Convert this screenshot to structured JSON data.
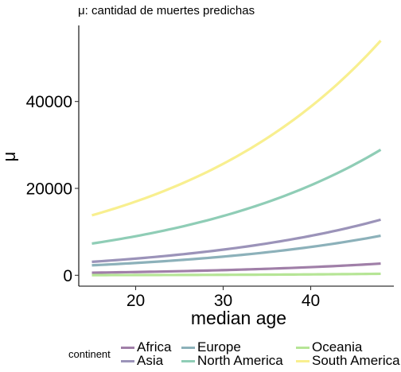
{
  "chart_data": {
    "type": "line",
    "title": "",
    "subtitle": "μ: cantidad de muertes predichas",
    "xlabel": "median age",
    "ylabel": "μ",
    "xlim": [
      13.5,
      49.5
    ],
    "ylim": [
      -2500,
      57500
    ],
    "x_ticks": [
      20,
      30,
      40
    ],
    "y_ticks": [
      0,
      20000,
      40000
    ],
    "x_tick_labels": [
      "20",
      "30",
      "40"
    ],
    "y_tick_labels": [
      "0",
      "20000",
      "40000"
    ],
    "grid": false,
    "legend_position": "bottom",
    "legend_title": "continent",
    "x": [
      15,
      48
    ],
    "series": [
      {
        "name": "Africa",
        "color": "#a07fa8",
        "values": [
          600,
          2700
        ]
      },
      {
        "name": "Asia",
        "color": "#9b93b9",
        "values": [
          3100,
          12800
        ]
      },
      {
        "name": "Europe",
        "color": "#8cb1ba",
        "values": [
          2300,
          9100
        ]
      },
      {
        "name": "North America",
        "color": "#8fcdb6",
        "values": [
          7300,
          28900
        ]
      },
      {
        "name": "Oceania",
        "color": "#b6e596",
        "values": [
          40,
          350
        ]
      },
      {
        "name": "South America",
        "color": "#f8ef8f",
        "values": [
          13800,
          54000
        ]
      }
    ]
  },
  "legend": {
    "title": "continent",
    "items": [
      {
        "label": "Africa",
        "color": "#a07fa8"
      },
      {
        "label": "Asia",
        "color": "#9b93b9"
      },
      {
        "label": "Europe",
        "color": "#8cb1ba"
      },
      {
        "label": "North America",
        "color": "#8fcdb6"
      },
      {
        "label": "Oceania",
        "color": "#b6e596"
      },
      {
        "label": "South America",
        "color": "#f8ef8f"
      }
    ]
  }
}
